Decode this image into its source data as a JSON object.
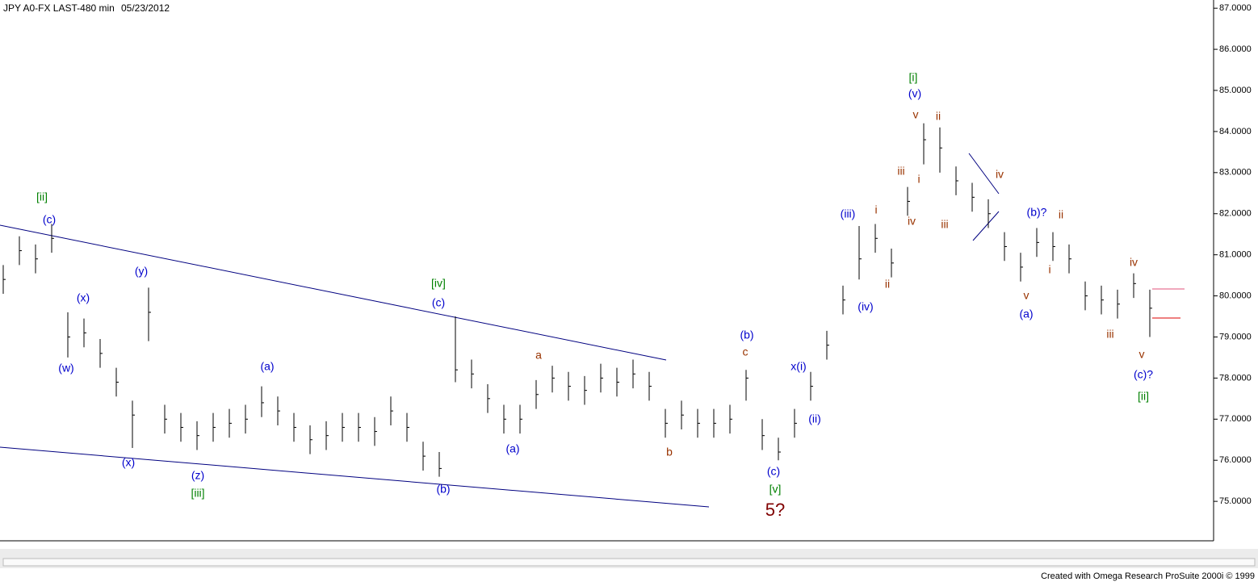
{
  "chart_data": {
    "type": "ohlc",
    "title": "JPY A0-FX LAST-480 min",
    "date": "05/23/2012",
    "footer": "Created with Omega Research ProSuite 2000i © 1999",
    "color": "#000000",
    "high": [
      80.75,
      81.45,
      81.25,
      81.75,
      79.6,
      79.45,
      78.95,
      78.25,
      77.45,
      80.2,
      77.35,
      77.15,
      76.95,
      77.15,
      77.25,
      77.35,
      77.8,
      77.55,
      77.15,
      76.85,
      76.95,
      77.15,
      77.15,
      77.05,
      77.55,
      77.15,
      76.45,
      76.2,
      79.5,
      78.45,
      77.85,
      77.35,
      77.35,
      77.95,
      78.3,
      78.15,
      78.05,
      78.35,
      78.25,
      78.45,
      78.15,
      77.25,
      77.45,
      77.25,
      77.25,
      77.35,
      78.2,
      77.0,
      76.55,
      77.25,
      78.15,
      79.15,
      80.25,
      81.7,
      81.75,
      81.15,
      82.65,
      84.2,
      84.1,
      83.15,
      82.75,
      82.35,
      81.55,
      81.05,
      81.65,
      81.55,
      81.25,
      80.35,
      80.25,
      80.15,
      80.55,
      80.15
    ],
    "low": [
      80.05,
      80.75,
      80.55,
      81.05,
      78.5,
      78.75,
      78.25,
      77.55,
      76.3,
      78.9,
      76.65,
      76.45,
      76.25,
      76.45,
      76.55,
      76.65,
      77.05,
      76.85,
      76.45,
      76.15,
      76.25,
      76.45,
      76.45,
      76.35,
      76.85,
      76.45,
      75.75,
      75.6,
      77.9,
      77.75,
      77.15,
      76.65,
      76.65,
      77.25,
      77.65,
      77.45,
      77.35,
      77.65,
      77.55,
      77.75,
      77.45,
      76.55,
      76.75,
      76.55,
      76.55,
      76.65,
      77.45,
      76.25,
      76.0,
      76.55,
      77.45,
      78.45,
      79.55,
      80.4,
      81.05,
      80.45,
      81.95,
      83.2,
      83.0,
      82.45,
      82.05,
      81.65,
      80.85,
      80.35,
      80.95,
      80.85,
      80.55,
      79.65,
      79.55,
      79.45,
      79.95,
      79.0
    ],
    "close": [
      80.4,
      81.1,
      80.9,
      81.4,
      79.0,
      79.1,
      78.6,
      77.9,
      77.1,
      79.6,
      77.0,
      76.8,
      76.6,
      76.8,
      76.9,
      77.0,
      77.4,
      77.2,
      76.8,
      76.5,
      76.6,
      76.8,
      76.8,
      76.7,
      77.2,
      76.8,
      76.1,
      75.8,
      78.2,
      78.1,
      77.5,
      77.0,
      77.0,
      77.6,
      78.0,
      77.8,
      77.7,
      78.0,
      77.9,
      78.1,
      77.8,
      76.9,
      77.1,
      76.9,
      76.9,
      77.0,
      78.0,
      76.6,
      76.2,
      76.9,
      77.8,
      78.8,
      79.9,
      80.9,
      81.4,
      80.8,
      82.3,
      83.8,
      83.6,
      82.8,
      82.4,
      82.0,
      81.2,
      80.7,
      81.3,
      81.2,
      80.9,
      80.0,
      79.9,
      79.8,
      80.3,
      79.7
    ],
    "ylim": [
      74.04,
      87.2
    ],
    "yticks": [
      {
        "value": 75,
        "label": "75.0000"
      },
      {
        "value": 76,
        "label": "76.0000"
      },
      {
        "value": 77,
        "label": "77.0000"
      },
      {
        "value": 78,
        "label": "78.0000"
      },
      {
        "value": 79,
        "label": "79.0000"
      },
      {
        "value": 80,
        "label": "80.0000"
      },
      {
        "value": 81,
        "label": "81.0000"
      },
      {
        "value": 82,
        "label": "82.0000"
      },
      {
        "value": 83,
        "label": "83.0000"
      },
      {
        "value": 84,
        "label": "84.0000"
      },
      {
        "value": 85,
        "label": "85.0000"
      },
      {
        "value": 86,
        "label": "86.0000"
      },
      {
        "value": 87,
        "label": "87.0000"
      }
    ],
    "annotations": [
      {
        "text": "[ii]",
        "color": "#008000"
      },
      {
        "text": "[iv]",
        "color": "#008000"
      },
      {
        "text": "[iii]",
        "color": "#008000"
      },
      {
        "text": "[v]",
        "color": "#008000"
      },
      {
        "text": "[i]",
        "color": "#008000"
      },
      {
        "text": "[ii]",
        "color": "#008000"
      },
      {
        "text": "(c)",
        "color": "#0000cc"
      },
      {
        "text": "(x)",
        "color": "#0000cc"
      },
      {
        "text": "(y)",
        "color": "#0000cc"
      },
      {
        "text": "(w)",
        "color": "#0000cc"
      },
      {
        "text": "(x)",
        "color": "#0000cc"
      },
      {
        "text": "(z)",
        "color": "#0000cc"
      },
      {
        "text": "(a)",
        "color": "#0000cc"
      },
      {
        "text": "(c)",
        "color": "#0000cc"
      },
      {
        "text": "(b)",
        "color": "#0000cc"
      },
      {
        "text": "(a)",
        "color": "#0000cc"
      },
      {
        "text": "(b)",
        "color": "#0000cc"
      },
      {
        "text": "(c)",
        "color": "#0000cc"
      },
      {
        "text": "x(i)",
        "color": "#0000cc"
      },
      {
        "text": "(ii)",
        "color": "#0000cc"
      },
      {
        "text": "(iii)",
        "color": "#0000cc"
      },
      {
        "text": "(iv)",
        "color": "#0000cc"
      },
      {
        "text": "(v)",
        "color": "#0000cc"
      },
      {
        "text": "(b)?",
        "color": "#0000cc"
      },
      {
        "text": "(a)",
        "color": "#0000cc"
      },
      {
        "text": "(c)?",
        "color": "#0000cc"
      },
      {
        "text": "a",
        "color": "#993300"
      },
      {
        "text": "b",
        "color": "#993300"
      },
      {
        "text": "c",
        "color": "#993300"
      },
      {
        "text": "5?",
        "color": "#800000"
      },
      {
        "text": "i",
        "color": "#993300"
      },
      {
        "text": "ii",
        "color": "#993300"
      },
      {
        "text": "iii",
        "color": "#993300"
      },
      {
        "text": "iv",
        "color": "#993300"
      },
      {
        "text": "v",
        "color": "#993300"
      },
      {
        "text": "i",
        "color": "#993300"
      },
      {
        "text": "ii",
        "color": "#993300"
      },
      {
        "text": "iii",
        "color": "#993300"
      },
      {
        "text": "iv",
        "color": "#993300"
      },
      {
        "text": "v",
        "color": "#993300"
      },
      {
        "text": "i",
        "color": "#993300"
      },
      {
        "text": "ii",
        "color": "#993300"
      },
      {
        "text": "iii",
        "color": "#993300"
      },
      {
        "text": "iv",
        "color": "#993300"
      },
      {
        "text": "v",
        "color": "#993300"
      }
    ]
  }
}
